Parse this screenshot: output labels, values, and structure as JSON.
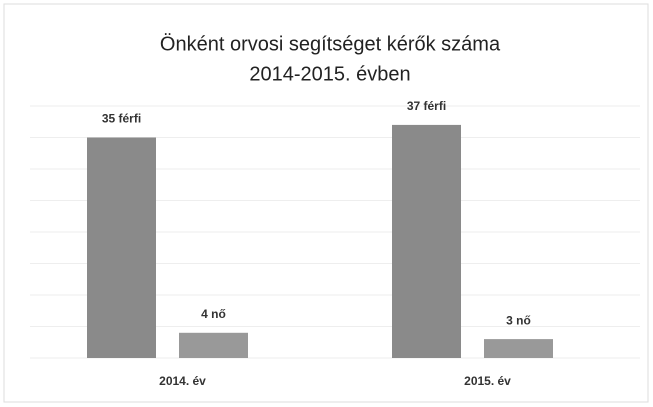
{
  "chart_data": {
    "type": "bar",
    "title": [
      "Önként orvosi segítséget kérők száma",
      "2014-2015. évben"
    ],
    "categories": [
      "2014. év",
      "2015. év"
    ],
    "series": [
      {
        "color": "#8a8a8a",
        "values": [
          35,
          37
        ],
        "value_labels": [
          "35 férfi",
          "37 férfi"
        ]
      },
      {
        "color": "#999999",
        "values": [
          4,
          3
        ],
        "value_labels": [
          "4 nő",
          "3 nő"
        ]
      }
    ],
    "ylim": [
      0,
      40
    ],
    "yticks": [
      0,
      5,
      10,
      15,
      20,
      25,
      30,
      35,
      40
    ],
    "grid": true
  }
}
